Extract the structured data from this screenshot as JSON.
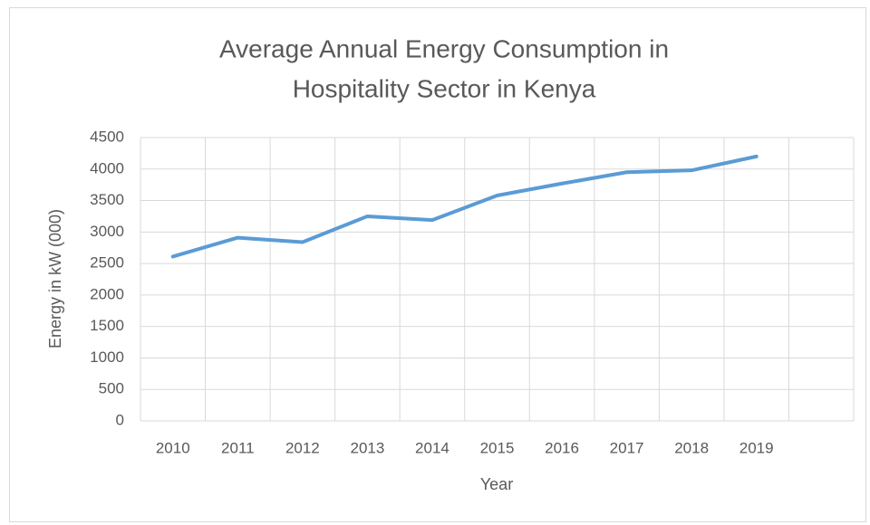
{
  "chart_data": {
    "type": "line",
    "title": [
      "Average Annual Energy Consumption  in",
      "Hospitality Sector in Kenya"
    ],
    "x_label": "Year",
    "y_label": "Energy in kW (000)",
    "categories": [
      "2010",
      "2011",
      "2012",
      "2013",
      "2014",
      "2015",
      "2016",
      "2017",
      "2018",
      "2019",
      null
    ],
    "series": [
      {
        "name": "Energy",
        "color": "#5b9bd5",
        "values": [
          2610,
          2910,
          2840,
          3250,
          3190,
          3580,
          3770,
          3950,
          3980,
          4200,
          null
        ]
      }
    ],
    "ylim": [
      0,
      4500
    ],
    "yticks": [
      0,
      500,
      1000,
      1500,
      2000,
      2500,
      3000,
      3500,
      4000,
      4500
    ],
    "grid": true
  }
}
